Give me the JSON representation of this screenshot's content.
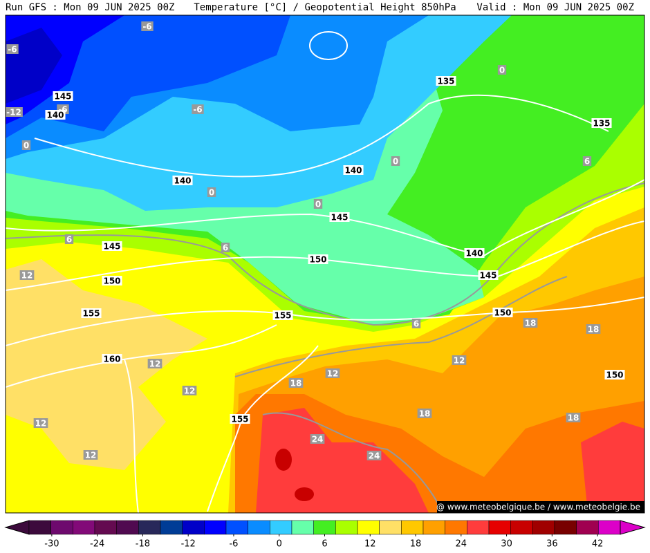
{
  "header": {
    "run": "Run GFS : Mon 09 JUN 2025 00Z",
    "title": "Temperature [°C] / Geopotential Height 850hPa",
    "valid": "Valid : Mon 09 JUN 2025 00Z"
  },
  "map": {
    "temperature_labels": [
      -6,
      -6,
      -6,
      -12,
      0,
      -6,
      0,
      0,
      0,
      0,
      6,
      6,
      6,
      12,
      12,
      12,
      12,
      12,
      12,
      12,
      18,
      18,
      18,
      18,
      18,
      24,
      24,
      6
    ],
    "height_labels": [
      145,
      140,
      135,
      135,
      140,
      140,
      145,
      145,
      150,
      140,
      145,
      150,
      155,
      155,
      150,
      160,
      150,
      155
    ],
    "credit": "@ www.meteobelgique.be / www.meteobelgie.be"
  },
  "colorbar": {
    "lim": [
      -33,
      45
    ],
    "ticks": [
      -30,
      -24,
      -18,
      -12,
      -6,
      0,
      6,
      12,
      18,
      24,
      30,
      36,
      42
    ],
    "colors": [
      "#3c0a3c",
      "#6e0a6e",
      "#820a78",
      "#640a50",
      "#500a50",
      "#28285a",
      "#003c96",
      "#0000c8",
      "#0000ff",
      "#0050ff",
      "#0a8cff",
      "#33ccff",
      "#66ffaa",
      "#44ee22",
      "#aaff00",
      "#ffff00",
      "#ffe066",
      "#ffc800",
      "#ffa000",
      "#ff7800",
      "#ff3c3c",
      "#e60000",
      "#c80000",
      "#a00000",
      "#780000",
      "#a00050",
      "#dc00c8"
    ]
  }
}
